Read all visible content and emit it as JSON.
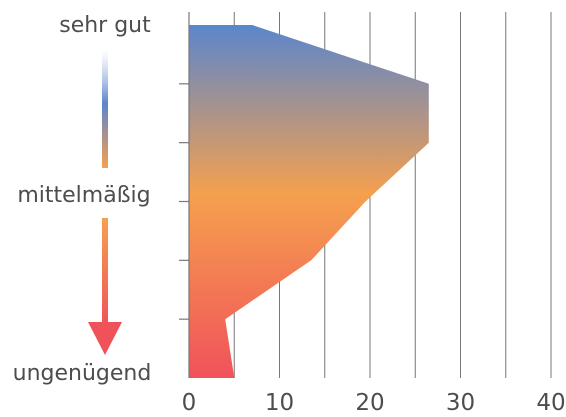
{
  "chart_data": {
    "type": "area",
    "orientation": "horizontal",
    "title": "",
    "xlabel": "",
    "ylabel": "",
    "xlim": [
      0,
      40
    ],
    "x_ticks": [
      "0",
      "10",
      "20",
      "30",
      "40"
    ],
    "grid": "vertical",
    "levels": 7,
    "values": [
      7,
      26.5,
      26.5,
      19.5,
      13.5,
      4,
      5
    ],
    "category_labels": {
      "top": "sehr gut",
      "middle": "mittelmäßig",
      "bottom": "ungenügend"
    },
    "colors": {
      "top": "#5b86cc",
      "middle": "#f5a04e",
      "bottom": "#f0525a",
      "grid": "#777777",
      "text": "#4d4d4d"
    }
  }
}
